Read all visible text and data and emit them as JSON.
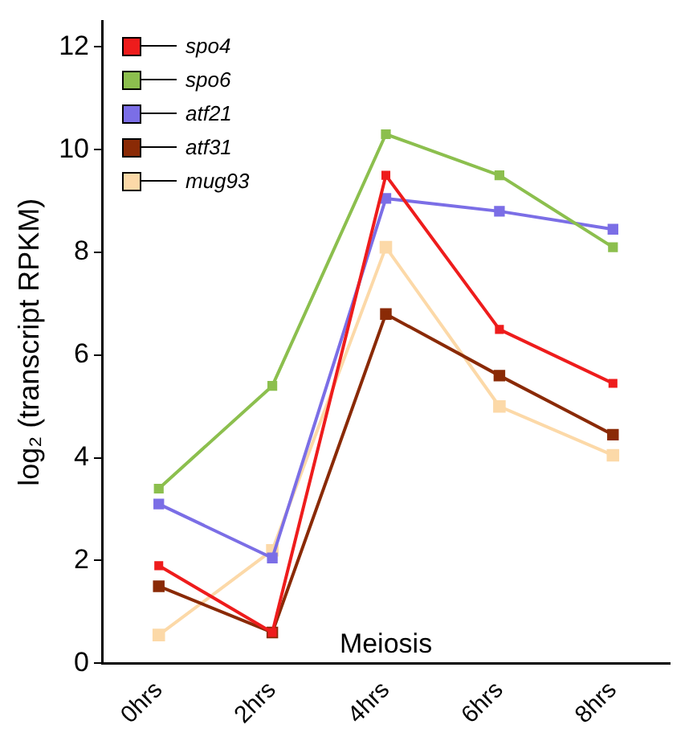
{
  "chart_data": {
    "type": "line",
    "xlabel": "Meiosis",
    "ylabel": "log₂ (transcript RPKM)",
    "categories": [
      "0hrs",
      "2hrs",
      "4hrs",
      "6hrs",
      "8hrs"
    ],
    "series": [
      {
        "name": "spo4",
        "color": "#ee1c1c",
        "values": [
          1.9,
          0.6,
          9.5,
          6.5,
          5.45
        ]
      },
      {
        "name": "spo6",
        "color": "#8cbf4e",
        "values": [
          3.4,
          5.4,
          10.3,
          9.5,
          8.1
        ]
      },
      {
        "name": "atf21",
        "color": "#7b6ee6",
        "values": [
          3.1,
          2.05,
          9.05,
          8.8,
          8.45
        ]
      },
      {
        "name": "atf31",
        "color": "#8a2a06",
        "values": [
          1.5,
          0.6,
          6.8,
          5.6,
          4.45
        ]
      },
      {
        "name": "mug93",
        "color": "#fcd9a8",
        "values": [
          0.55,
          2.2,
          8.1,
          5.0,
          4.05
        ]
      }
    ],
    "ylim": [
      0,
      12.5
    ],
    "yticks": [
      0,
      2,
      4,
      6,
      8,
      10,
      12
    ],
    "grid": false,
    "legend": "top left",
    "marker": "square",
    "line_style": "solid"
  }
}
